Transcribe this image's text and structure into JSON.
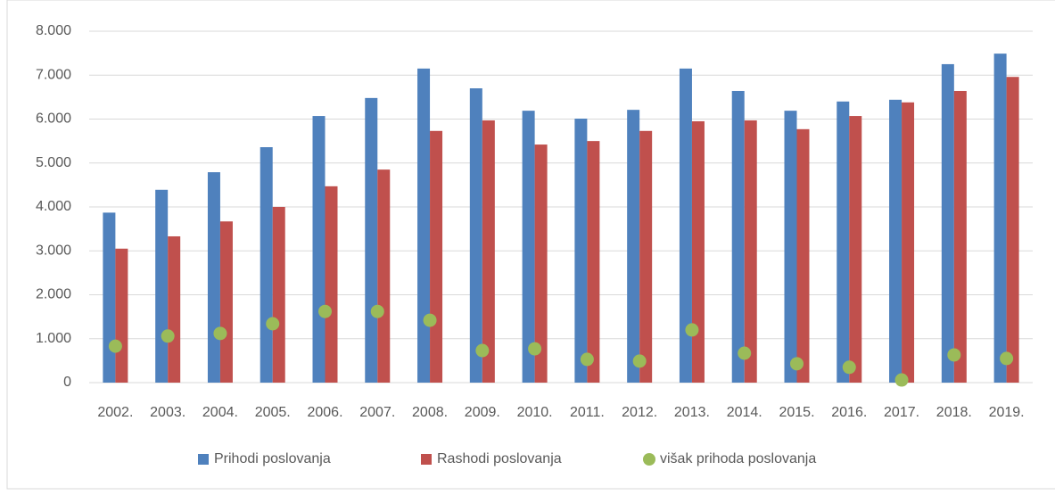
{
  "chart_data": {
    "type": "bar",
    "categories": [
      "2002.",
      "2003.",
      "2004.",
      "2005.",
      "2006.",
      "2007.",
      "2008.",
      "2009.",
      "2010.",
      "2011.",
      "2012.",
      "2013.",
      "2014.",
      "2015.",
      "2016.",
      "2017.",
      "2018.",
      "2019."
    ],
    "series": [
      {
        "name": "Prihodi poslovanja",
        "color": "#4f81bd",
        "mark": "bar",
        "values": [
          3870,
          4390,
          4790,
          5360,
          6070,
          6480,
          7150,
          6700,
          6190,
          6010,
          6210,
          7150,
          6640,
          6190,
          6400,
          6440,
          7250,
          7490
        ]
      },
      {
        "name": "Rashodi poslovanja",
        "color": "#c0504d",
        "mark": "bar",
        "values": [
          3050,
          3330,
          3670,
          4000,
          4470,
          4850,
          5730,
          5970,
          5420,
          5500,
          5730,
          5950,
          5970,
          5770,
          6070,
          6380,
          6640,
          6960
        ]
      },
      {
        "name": "višak prihoda poslovanja",
        "color": "#9bbb59",
        "mark": "dot",
        "values": [
          830,
          1060,
          1120,
          1340,
          1620,
          1620,
          1420,
          730,
          770,
          530,
          490,
          1200,
          670,
          430,
          350,
          60,
          630,
          550
        ]
      }
    ],
    "ylim": [
      0,
      8000
    ],
    "yticks": [
      0,
      {
        "value": 1000,
        "label": "1.000"
      },
      {
        "value": 2000,
        "label": "2.000"
      },
      {
        "value": 3000,
        "label": "3.000"
      },
      {
        "value": 4000,
        "label": "4.000"
      },
      {
        "value": 5000,
        "label": "5.000"
      },
      {
        "value": 6000,
        "label": "6.000"
      },
      {
        "value": 7000,
        "label": "7.000"
      },
      {
        "value": 8000,
        "label": "8.000"
      }
    ],
    "grid": true,
    "legend": "bottom"
  }
}
